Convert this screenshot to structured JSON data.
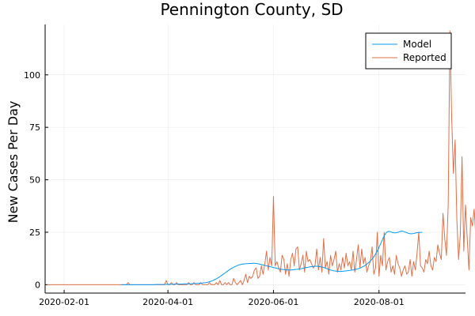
{
  "chart_data": {
    "type": "line",
    "title": "Pennington County, SD",
    "xlabel": "",
    "ylabel": "New Cases Per Day",
    "xlim": [
      "2020-01-21",
      "2020-09-20"
    ],
    "ylim": [
      -4,
      124
    ],
    "x_ticks": [
      "2020-02-01",
      "2020-04-01",
      "2020-06-01",
      "2020-08-01"
    ],
    "y_ticks": [
      0,
      25,
      50,
      75,
      100
    ],
    "grid": true,
    "legend_position": "top-right",
    "series": [
      {
        "name": "Model",
        "color": "#009AFA",
        "start_date": "2020-03-05",
        "values": [
          0,
          0,
          0,
          0,
          0,
          0,
          0,
          0,
          0,
          0,
          0,
          0,
          0,
          0,
          0,
          0,
          0,
          0,
          0,
          0,
          0.1,
          0.1,
          0.1,
          0.1,
          0.1,
          0.1,
          0.2,
          0.2,
          0.2,
          0.2,
          0.2,
          0.3,
          0.3,
          0.3,
          0.3,
          0.3,
          0.4,
          0.4,
          0.4,
          0.4,
          0.4,
          0.5,
          0.5,
          0.6,
          0.6,
          0.7,
          0.7,
          0.8,
          0.9,
          1,
          1.2,
          1.4,
          1.7,
          2,
          2.4,
          2.8,
          3.3,
          3.8,
          4.4,
          5,
          5.6,
          6.2,
          6.8,
          7.4,
          7.9,
          8.3,
          8.7,
          9.1,
          9.4,
          9.6,
          9.8,
          9.9,
          10,
          10,
          10.1,
          10.1,
          10.2,
          10.2,
          10.1,
          10,
          9.8,
          9.6,
          9.4,
          9.2,
          9,
          8.8,
          8.6,
          8.4,
          8.2,
          8,
          7.8,
          7.6,
          7.4,
          7.3,
          7.2,
          7.1,
          7,
          7,
          7,
          7.1,
          7.2,
          7.3,
          7.4,
          7.5,
          7.6,
          7.8,
          8,
          8.2,
          8.3,
          8.5,
          8.6,
          8.7,
          8.8,
          8.8,
          8.7,
          8.6,
          8.4,
          8.2,
          7.9,
          7.6,
          7.3,
          7,
          6.8,
          6.6,
          6.5,
          6.4,
          6.3,
          6.3,
          6.4,
          6.5,
          6.6,
          6.7,
          6.8,
          6.9,
          7,
          7.2,
          7.4,
          7.6,
          7.9,
          8.3,
          8.7,
          9.2,
          9.8,
          10.5,
          11.3,
          12.2,
          13.3,
          14.6,
          16.1,
          17.8,
          19.6,
          21.5,
          23.3,
          24.6,
          25.3,
          25.4,
          25.1,
          24.8,
          24.7,
          24.8,
          25,
          25.3,
          25.5,
          25.4,
          25.1,
          24.8,
          24.5,
          24.3,
          24.3,
          24.4,
          24.6,
          24.8,
          24.9,
          24.9,
          25
        ]
      },
      {
        "name": "Reported",
        "color": "#E26F46",
        "start_date": "2020-01-22",
        "values": [
          0,
          0,
          0,
          0,
          0,
          0,
          0,
          0,
          0,
          0,
          0,
          0,
          0,
          0,
          0,
          0,
          0,
          0,
          0,
          0,
          0,
          0,
          0,
          0,
          0,
          0,
          0,
          0,
          0,
          0,
          0,
          0,
          0,
          0,
          0,
          0,
          0,
          0,
          0,
          0,
          0,
          0,
          0,
          0,
          0,
          0,
          0,
          1,
          0,
          0,
          0,
          0,
          0,
          0,
          0,
          0,
          0,
          0,
          0,
          0,
          0,
          0,
          0,
          0,
          0,
          0,
          0,
          0,
          0,
          2,
          0,
          0,
          1,
          0,
          0,
          1,
          0,
          0,
          0,
          0,
          0,
          0,
          1,
          0,
          0,
          1,
          0,
          0,
          0,
          1,
          0,
          0,
          0,
          0,
          1,
          0,
          0,
          0,
          1,
          0,
          2,
          0,
          0,
          1,
          0,
          1,
          0,
          0,
          3,
          1,
          0,
          1,
          2,
          0,
          2,
          5,
          1,
          4,
          3,
          4,
          7,
          8,
          3,
          4,
          9,
          5,
          10,
          16,
          7,
          13,
          9,
          42,
          9,
          11,
          8,
          6,
          14,
          12,
          5,
          10,
          4,
          12,
          15,
          9,
          17,
          18,
          7,
          10,
          14,
          6,
          16,
          11,
          12,
          10,
          8,
          9,
          17,
          7,
          13,
          6,
          22,
          8,
          11,
          5,
          14,
          9,
          12,
          16,
          6,
          10,
          7,
          13,
          8,
          15,
          9,
          11,
          7,
          16,
          6,
          12,
          19,
          8,
          17,
          10,
          13,
          6,
          9,
          11,
          18,
          5,
          8,
          25,
          4,
          14,
          9,
          25,
          7,
          11,
          13,
          6,
          9,
          5,
          14,
          10,
          8,
          4,
          7,
          9,
          5,
          6,
          12,
          4,
          11,
          7,
          15,
          25,
          9,
          8,
          6,
          12,
          10,
          16,
          9,
          7,
          13,
          11,
          19,
          15,
          12,
          34,
          22,
          14,
          38,
          121,
          80,
          53,
          69,
          31,
          12,
          24,
          61,
          16,
          38,
          22,
          7,
          32,
          28,
          36,
          22,
          35,
          29,
          16,
          22,
          35,
          26,
          33,
          24,
          20
        ]
      }
    ]
  }
}
